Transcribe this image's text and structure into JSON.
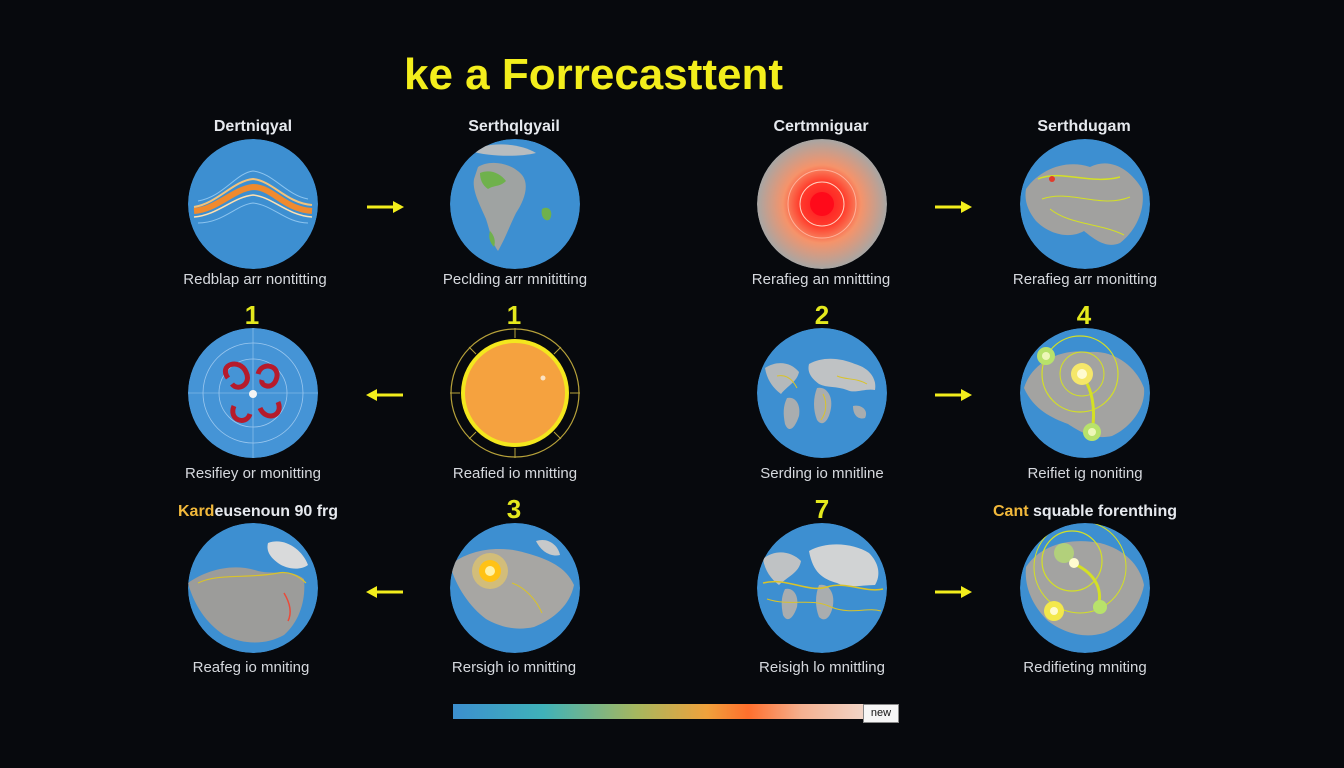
{
  "title": "ke a Forrecasttent",
  "rows": [
    {
      "number_labels": [
        "",
        "",
        "",
        ""
      ],
      "headers": [
        "Dertniqyal",
        "Serthqlgyail",
        "Certmniguar",
        "Serthdugam"
      ],
      "captions": [
        "Redblap arr nontitting",
        "Peclding arr mnititting",
        "Rerafieg an mnittting",
        "Rerafieg arr monitting"
      ],
      "arrows": [
        "right",
        "right"
      ]
    },
    {
      "number_labels": [
        "1",
        "1",
        "2",
        "4"
      ],
      "headers": [
        "",
        "",
        "",
        ""
      ],
      "captions": [
        "Resifiey or monitting",
        "Reafied io mnitting",
        "Serding io mnitline",
        "Reifiet ig noniting"
      ],
      "arrows": [
        "left",
        "right"
      ]
    },
    {
      "number_labels": [
        "",
        "3",
        "7",
        ""
      ],
      "headers": [
        "",
        "",
        "",
        ""
      ],
      "captions": [
        "Reafeg io mniting",
        "Rersigh io mnitting",
        "Reisigh lo mnittling",
        "Redifieting mniting"
      ],
      "arrows": [
        "left",
        "right"
      ]
    }
  ],
  "notes": {
    "left_highlight": "Kard",
    "left_rest": "eusenoun 90 frg",
    "right_highlight": "Cant",
    "right_rest": " squable forenthing"
  },
  "colorbar": {
    "label": "new"
  },
  "globe_types": [
    "jetstream",
    "south-america",
    "heat-spot",
    "land-tracks",
    "storm-swirl",
    "sun-disc",
    "world-map",
    "tracked-storm",
    "coast-land",
    "sun-land",
    "world-map-tracks",
    "tracked-storm-2"
  ],
  "colors": {
    "title": "#f3ee1c",
    "ocean": "#3d8fd1",
    "land": "#9b9b99",
    "accent_yellow": "#e4e91d",
    "highlight": "#f2b93b"
  }
}
